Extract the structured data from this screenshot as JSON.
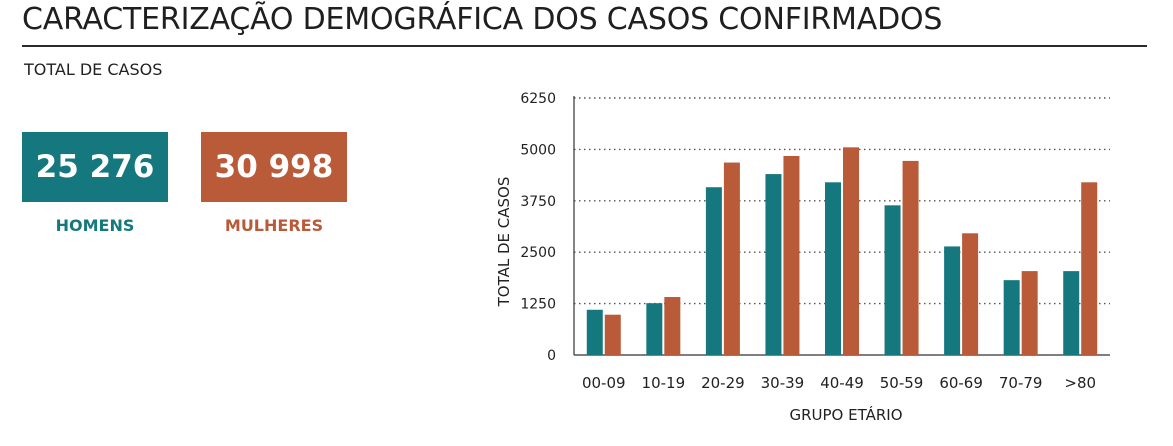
{
  "header": {
    "title": "CARACTERIZAÇÃO DEMOGRÁFICA DOS CASOS CONFIRMADOS",
    "subtitle": "TOTAL DE CASOS"
  },
  "totals": {
    "men": {
      "value": "25 276",
      "label": "HOMENS",
      "color": "#16787f"
    },
    "women": {
      "value": "30 998",
      "label": "MULHERES",
      "color": "#b95a39"
    }
  },
  "chart_data": {
    "type": "bar",
    "xlabel": "GRUPO ETÁRIO",
    "ylabel": "TOTAL DE CASOS",
    "ylim": [
      0,
      6250
    ],
    "yticks": [
      0,
      1250,
      2500,
      3750,
      5000,
      6250
    ],
    "grid": "horizontal dotted",
    "categories": [
      "00-09",
      "10-19",
      "20-29",
      "30-39",
      "40-49",
      "50-59",
      "60-69",
      "70-79",
      ">80"
    ],
    "series": [
      {
        "color": "#16787f",
        "values": [
          1100,
          1260,
          4080,
          4400,
          4200,
          3640,
          2640,
          1820,
          2040
        ]
      },
      {
        "color": "#b95a39",
        "values": [
          980,
          1410,
          4680,
          4840,
          5050,
          4720,
          2960,
          2040,
          4200
        ]
      }
    ]
  }
}
